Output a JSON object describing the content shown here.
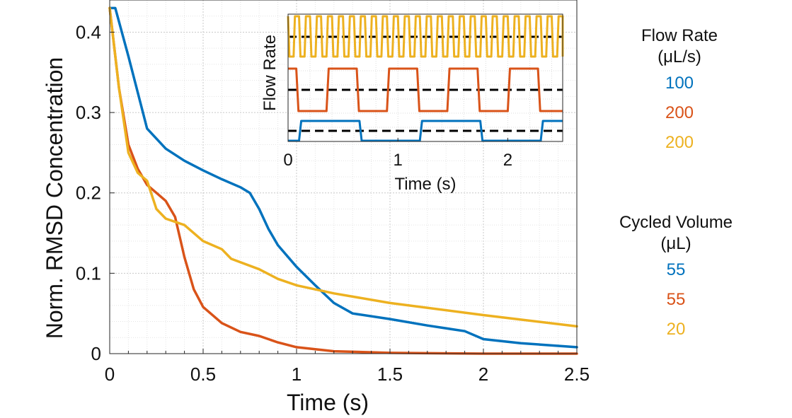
{
  "chart_data": [
    {
      "type": "line",
      "title": "",
      "xlabel": "Time (s)",
      "ylabel": "Norm. RMSD Concentration",
      "xlim": [
        0,
        2.5
      ],
      "ylim": [
        0,
        0.44
      ],
      "x_ticks": [
        "0",
        "0.5",
        "1",
        "1.5",
        "2",
        "2.5"
      ],
      "y_ticks": [
        "0",
        "0.1",
        "0.2",
        "0.3",
        "0.4"
      ],
      "grid": "on (dotted, major and minor)",
      "series": [
        {
          "color": "#0072BD",
          "x": [
            0,
            0.03,
            0.1,
            0.2,
            0.3,
            0.4,
            0.5,
            0.6,
            0.7,
            0.75,
            0.8,
            0.85,
            0.9,
            1.0,
            1.1,
            1.2,
            1.3,
            1.5,
            1.7,
            1.9,
            2.0,
            2.2,
            2.5
          ],
          "y": [
            0.43,
            0.43,
            0.37,
            0.28,
            0.255,
            0.24,
            0.228,
            0.217,
            0.207,
            0.2,
            0.18,
            0.155,
            0.135,
            0.108,
            0.085,
            0.063,
            0.05,
            0.043,
            0.035,
            0.028,
            0.018,
            0.013,
            0.008
          ]
        },
        {
          "color": "#D95319",
          "x": [
            0,
            0.05,
            0.1,
            0.15,
            0.2,
            0.25,
            0.3,
            0.35,
            0.4,
            0.45,
            0.5,
            0.6,
            0.7,
            0.8,
            0.9,
            1.0,
            1.2,
            1.5,
            2.0,
            2.5
          ],
          "y": [
            0.43,
            0.33,
            0.26,
            0.23,
            0.21,
            0.2,
            0.19,
            0.17,
            0.12,
            0.08,
            0.058,
            0.038,
            0.027,
            0.022,
            0.014,
            0.008,
            0.003,
            0.001,
            0.0,
            0.0
          ]
        },
        {
          "color": "#EDB120",
          "x": [
            0,
            0.05,
            0.1,
            0.15,
            0.2,
            0.25,
            0.3,
            0.4,
            0.5,
            0.6,
            0.65,
            0.8,
            0.9,
            1.0,
            1.2,
            1.5,
            2.0,
            2.5
          ],
          "y": [
            0.43,
            0.33,
            0.25,
            0.225,
            0.215,
            0.18,
            0.168,
            0.16,
            0.14,
            0.13,
            0.118,
            0.105,
            0.093,
            0.085,
            0.075,
            0.063,
            0.048,
            0.034
          ]
        }
      ]
    },
    {
      "type": "line",
      "title": "",
      "xlabel": "Time (s)",
      "ylabel": "Flow Rate",
      "xlim": [
        0,
        2.5
      ],
      "x_ticks": [
        "0",
        "1",
        "2"
      ],
      "grid": "on (dotted)",
      "series": [
        {
          "color": "#EDB120",
          "pattern": "square wave",
          "period_s": 0.1,
          "mean_line": "black dashed"
        },
        {
          "color": "#D95319",
          "pattern": "square wave",
          "period_s": 0.55,
          "mean_line": "black dashed"
        },
        {
          "color": "#0072BD",
          "pattern": "square wave",
          "period_s": 1.1,
          "mean_line": "black dashed"
        }
      ]
    }
  ],
  "legend": {
    "flow_rate": {
      "title_line1": "Flow Rate",
      "title_line2": "(μL/s)",
      "items": [
        {
          "value": "100",
          "color": "#0072BD"
        },
        {
          "value": "200",
          "color": "#D95319"
        },
        {
          "value": "200",
          "color": "#EDB120"
        }
      ]
    },
    "cycled_volume": {
      "title_line1": "Cycled Volume",
      "title_line2": "(μL)",
      "items": [
        {
          "value": "55",
          "color": "#0072BD"
        },
        {
          "value": "55",
          "color": "#D95319"
        },
        {
          "value": "20",
          "color": "#EDB120"
        }
      ]
    }
  }
}
